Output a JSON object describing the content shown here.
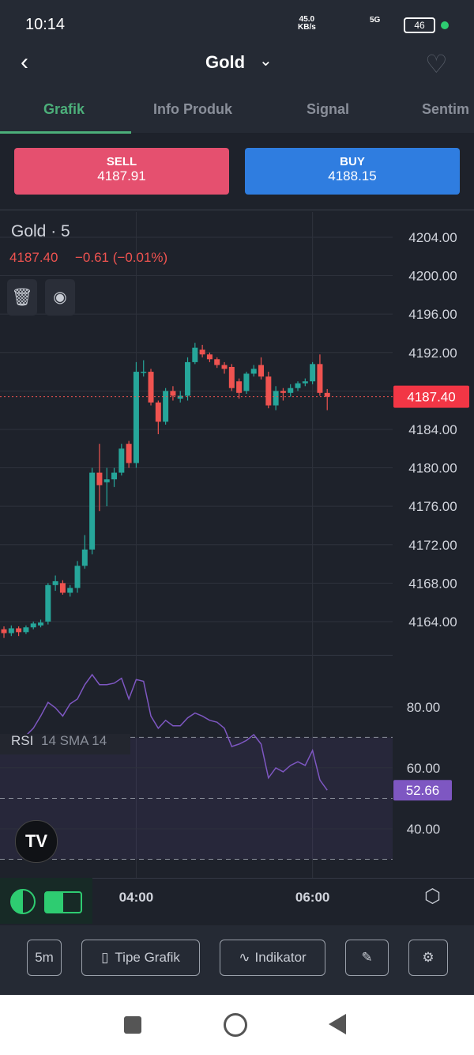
{
  "status_bar": {
    "time": "10:14",
    "speed": "45.0",
    "speed_unit": "KB/s",
    "network": "5G",
    "battery": "46"
  },
  "header": {
    "title": "Gold"
  },
  "tabs": [
    "Grafik",
    "Info Produk",
    "Signal",
    "Sentim"
  ],
  "trade": {
    "sell": {
      "label": "SELL",
      "price": "4187.91"
    },
    "buy": {
      "label": "BUY",
      "price": "4188.15"
    }
  },
  "chart_data": [
    {
      "type": "candlestick",
      "title": "Gold · 5",
      "last": "4187.40",
      "change": "−0.61 (−0.01%)",
      "open": [
        4163.2,
        4162.8,
        4163.3,
        4162.9,
        4163.4,
        4163.6,
        4164.0,
        4167.8,
        4168.0,
        4167.0,
        4167.5,
        4169.8,
        4171.5,
        4179.5,
        4178.5,
        4178.8,
        4179.5,
        4182.5,
        4180.5,
        4190.0,
        4190.0,
        4186.8,
        4184.8,
        4188.0,
        4187.2,
        4187.5,
        4191.0,
        4192.3,
        4191.8,
        4191.3,
        4190.7,
        4190.5,
        4189.0,
        4188.0,
        4189.8,
        4190.7,
        4189.5,
        4186.5,
        4188.0,
        4187.8,
        4188.3,
        4188.8,
        4189.0,
        4190.8,
        4187.8
      ],
      "high": [
        4163.5,
        4163.6,
        4163.5,
        4163.6,
        4164.0,
        4164.2,
        4168.0,
        4168.8,
        4168.3,
        4167.8,
        4170.3,
        4173.0,
        4180.0,
        4182.5,
        4180.0,
        4180.0,
        4182.5,
        4182.8,
        4191.0,
        4191.2,
        4190.3,
        4187.0,
        4188.3,
        4188.5,
        4188.0,
        4191.5,
        4193.0,
        4192.8,
        4192.0,
        4191.5,
        4191.0,
        4190.8,
        4189.3,
        4190.0,
        4190.7,
        4191.5,
        4190.0,
        4188.5,
        4188.3,
        4188.7,
        4189.0,
        4189.3,
        4191.0,
        4191.8,
        4188.2
      ],
      "low": [
        4162.3,
        4162.5,
        4162.5,
        4162.7,
        4163.2,
        4163.4,
        4163.7,
        4167.2,
        4166.8,
        4166.6,
        4167.0,
        4169.5,
        4171.0,
        4175.5,
        4176.0,
        4178.0,
        4179.2,
        4180.0,
        4180.0,
        4189.5,
        4186.5,
        4183.5,
        4184.5,
        4187.0,
        4186.8,
        4187.0,
        4190.8,
        4191.5,
        4191.0,
        4190.4,
        4189.8,
        4188.0,
        4187.2,
        4187.7,
        4189.5,
        4189.2,
        4186.2,
        4186.0,
        4187.0,
        4187.4,
        4188.0,
        4188.5,
        4188.7,
        4187.5,
        4186.0
      ],
      "close": [
        4162.8,
        4163.3,
        4162.9,
        4163.4,
        4163.8,
        4163.9,
        4167.8,
        4168.2,
        4167.0,
        4167.5,
        4169.8,
        4171.5,
        4179.5,
        4178.2,
        4178.8,
        4179.5,
        4182.0,
        4180.5,
        4190.0,
        4190.0,
        4186.8,
        4184.8,
        4188.0,
        4187.5,
        4187.5,
        4191.0,
        4192.5,
        4191.8,
        4191.3,
        4190.7,
        4190.3,
        4188.3,
        4187.8,
        4189.8,
        4190.3,
        4189.5,
        4186.5,
        4188.0,
        4187.8,
        4188.3,
        4188.8,
        4189.0,
        4190.8,
        4187.8,
        4187.4
      ],
      "up_color": "#26a69a",
      "down_color": "#ef5350",
      "ylim": [
        4160.54,
        4206.63
      ],
      "yticks": [
        {
          "value": 4204,
          "label": "4204.00"
        },
        {
          "value": 4200,
          "label": "4200.00"
        },
        {
          "value": 4196,
          "label": "4196.00"
        },
        {
          "value": 4192,
          "label": "4192.00"
        },
        {
          "value": 4188,
          "label": "4188.00"
        },
        {
          "value": 4184,
          "label": "4184.00"
        },
        {
          "value": 4180,
          "label": "4180.00"
        },
        {
          "value": 4176,
          "label": "4176.00"
        },
        {
          "value": 4172,
          "label": "4172.00"
        },
        {
          "value": 4168,
          "label": "4168.00"
        },
        {
          "value": 4164,
          "label": "4164.00"
        }
      ],
      "current": {
        "value": 4187.4,
        "label": "4187.40"
      },
      "xlim": [
        -0.54,
        52.9
      ],
      "xticks": [
        {
          "value": 18,
          "label": "04:00"
        },
        {
          "value": 42,
          "label": "06:00"
        }
      ],
      "grid": true
    },
    {
      "type": "line",
      "title": "RSI",
      "subtitle": "14 SMA 14",
      "color": "#7e57c2",
      "values": [
        66.7,
        65.5,
        68,
        70.6,
        73,
        77,
        81.5,
        79.7,
        77,
        81,
        82.6,
        87.3,
        90.6,
        87.3,
        87.3,
        87.8,
        89.4,
        82.6,
        89,
        88.4,
        77,
        73,
        75.6,
        73.8,
        73.8,
        76.4,
        78,
        77,
        75.6,
        75,
        73,
        67,
        67.8,
        69,
        70.9,
        67.8,
        56.7,
        60,
        58.7,
        60.8,
        62,
        60.8,
        65.7,
        56,
        52.66
      ],
      "ylim": [
        23.9,
        97.1
      ],
      "yticks": [
        {
          "value": 80,
          "label": "80.00"
        },
        {
          "value": 60,
          "label": "60.00"
        },
        {
          "value": 40,
          "label": "40.00"
        }
      ],
      "levels": [
        70,
        50,
        30
      ],
      "current": {
        "value": 52.66,
        "label": "52.66"
      }
    }
  ],
  "toolbar": {
    "interval": "5m",
    "chart_type": "Tipe Grafik",
    "indicator": "Indikator"
  }
}
